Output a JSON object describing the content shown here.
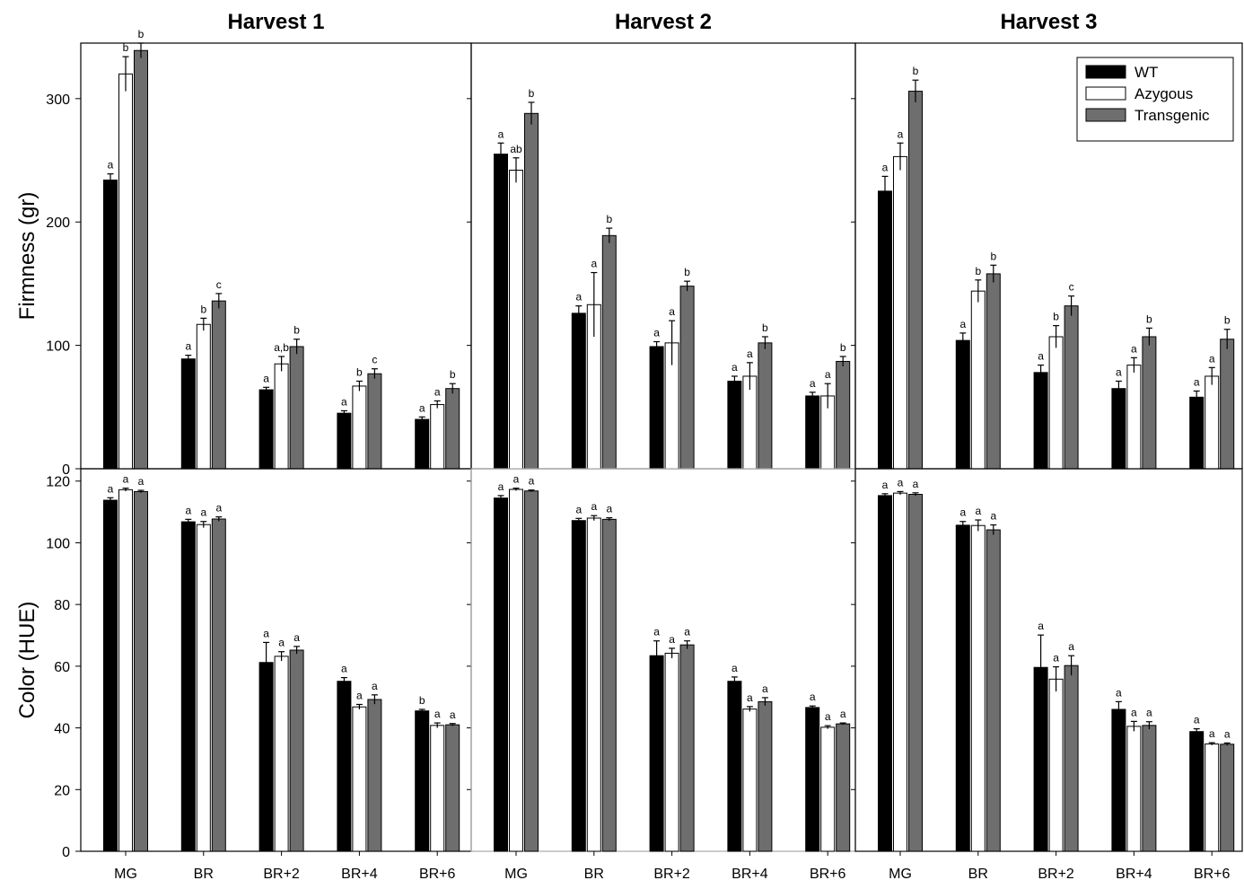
{
  "chart_data": {
    "type": "bar",
    "categories": [
      "MG",
      "BR",
      "BR+2",
      "BR+4",
      "BR+6"
    ],
    "harvest_titles": [
      "Harvest 1",
      "Harvest 2",
      "Harvest 3"
    ],
    "legend": {
      "placement": "top-right",
      "entries": [
        {
          "name": "WT",
          "color": "#000000"
        },
        {
          "name": "Azygous",
          "color": "#ffffff"
        },
        {
          "name": "Transgenic",
          "color": "#6e6e6e"
        }
      ]
    },
    "panels": [
      {
        "ylabel": "Firmness (gr)",
        "ylim": [
          0,
          345
        ],
        "yticks": [
          0,
          100,
          200,
          300
        ],
        "harvests": [
          {
            "title": "Harvest 1",
            "series": [
              {
                "name": "WT",
                "values": [
                  234,
                  89,
                  64,
                  45,
                  40
                ],
                "errors": [
                  5,
                  3,
                  2,
                  2,
                  2
                ],
                "letters": [
                  "a",
                  "a",
                  "a",
                  "a",
                  "a"
                ]
              },
              {
                "name": "Azygous",
                "values": [
                  320,
                  117,
                  85,
                  67,
                  52
                ],
                "errors": [
                  14,
                  5,
                  6,
                  4,
                  3
                ],
                "letters": [
                  "b",
                  "b",
                  "a,b",
                  "b",
                  "a"
                ]
              },
              {
                "name": "Transgenic",
                "values": [
                  339,
                  136,
                  99,
                  77,
                  65
                ],
                "errors": [
                  6,
                  6,
                  6,
                  4,
                  4
                ],
                "letters": [
                  "b",
                  "c",
                  "b",
                  "c",
                  "b"
                ]
              }
            ]
          },
          {
            "title": "Harvest 2",
            "series": [
              {
                "name": "WT",
                "values": [
                  255,
                  126,
                  99,
                  71,
                  59
                ],
                "errors": [
                  9,
                  6,
                  4,
                  4,
                  3
                ],
                "letters": [
                  "a",
                  "a",
                  "a",
                  "a",
                  "a"
                ]
              },
              {
                "name": "Azygous",
                "values": [
                  242,
                  133,
                  102,
                  75,
                  59
                ],
                "errors": [
                  10,
                  26,
                  18,
                  11,
                  10
                ],
                "letters": [
                  "ab",
                  "a",
                  "a",
                  "a",
                  "a"
                ]
              },
              {
                "name": "Transgenic",
                "values": [
                  288,
                  189,
                  148,
                  102,
                  87
                ],
                "errors": [
                  9,
                  6,
                  4,
                  5,
                  4
                ],
                "letters": [
                  "b",
                  "b",
                  "b",
                  "b",
                  "b"
                ]
              }
            ]
          },
          {
            "title": "Harvest 3",
            "series": [
              {
                "name": "WT",
                "values": [
                  225,
                  104,
                  78,
                  65,
                  58
                ],
                "errors": [
                  12,
                  6,
                  6,
                  6,
                  5
                ],
                "letters": [
                  "a",
                  "a",
                  "a",
                  "a",
                  "a"
                ]
              },
              {
                "name": "Azygous",
                "values": [
                  253,
                  144,
                  107,
                  84,
                  75
                ],
                "errors": [
                  11,
                  9,
                  9,
                  6,
                  7
                ],
                "letters": [
                  "a",
                  "b",
                  "b",
                  "a",
                  "a"
                ]
              },
              {
                "name": "Transgenic",
                "values": [
                  306,
                  158,
                  132,
                  107,
                  105
                ],
                "errors": [
                  9,
                  7,
                  8,
                  7,
                  8
                ],
                "letters": [
                  "b",
                  "b",
                  "c",
                  "b",
                  "b"
                ]
              }
            ]
          }
        ]
      },
      {
        "ylabel": "Color (HUE)",
        "ylim": [
          0,
          124
        ],
        "yticks": [
          0,
          20,
          40,
          60,
          80,
          100,
          120
        ],
        "harvests": [
          {
            "title": "Harvest 1",
            "series": [
              {
                "name": "WT",
                "values": [
                  113.8,
                  106.8,
                  61.2,
                  55.1,
                  45.5
                ],
                "errors": [
                  0.8,
                  0.8,
                  6.5,
                  1.2,
                  0.5
                ],
                "letters": [
                  "a",
                  "a",
                  "a",
                  "a",
                  "b"
                ]
              },
              {
                "name": "Azygous",
                "values": [
                  117.2,
                  105.9,
                  63.2,
                  46.8,
                  40.8
                ],
                "errors": [
                  0.5,
                  1.0,
                  1.5,
                  0.8,
                  0.8
                ],
                "letters": [
                  "a",
                  "a",
                  "a",
                  "a",
                  "a"
                ]
              },
              {
                "name": "Transgenic",
                "values": [
                  116.6,
                  107.7,
                  65.2,
                  49.2,
                  41.0
                ],
                "errors": [
                  0.4,
                  0.7,
                  1.2,
                  1.5,
                  0.4
                ],
                "letters": [
                  "a",
                  "a",
                  "a",
                  "a",
                  "a"
                ]
              }
            ]
          },
          {
            "title": "Harvest 2",
            "series": [
              {
                "name": "WT",
                "values": [
                  114.5,
                  107.2,
                  63.4,
                  55.1,
                  46.6
                ],
                "errors": [
                  0.8,
                  0.7,
                  4.8,
                  1.4,
                  0.5
                ],
                "letters": [
                  "a",
                  "a",
                  "a",
                  "a",
                  "a"
                ]
              },
              {
                "name": "Azygous",
                "values": [
                  117.3,
                  108.0,
                  64.2,
                  46.1,
                  40.2
                ],
                "errors": [
                  0.4,
                  0.8,
                  1.6,
                  0.8,
                  0.5
                ],
                "letters": [
                  "a",
                  "a",
                  "a",
                  "a",
                  "a"
                ]
              },
              {
                "name": "Transgenic",
                "values": [
                  116.8,
                  107.6,
                  66.9,
                  48.5,
                  41.3
                ],
                "errors": [
                  0.3,
                  0.5,
                  1.3,
                  1.3,
                  0.3
                ],
                "letters": [
                  "a",
                  "a",
                  "a",
                  "a",
                  "a"
                ]
              }
            ]
          },
          {
            "title": "Harvest 3",
            "series": [
              {
                "name": "WT",
                "values": [
                  115.3,
                  105.7,
                  59.6,
                  46.0,
                  38.8
                ],
                "errors": [
                  0.6,
                  1.2,
                  10.5,
                  2.5,
                  0.9
                ],
                "letters": [
                  "a",
                  "a",
                  "a",
                  "a",
                  "a"
                ]
              },
              {
                "name": "Azygous",
                "values": [
                  116.1,
                  105.6,
                  55.8,
                  40.5,
                  34.8
                ],
                "errors": [
                  0.5,
                  1.8,
                  4.0,
                  1.6,
                  0.4
                ],
                "letters": [
                  "a",
                  "a",
                  "a",
                  "a",
                  "a"
                ]
              },
              {
                "name": "Transgenic",
                "values": [
                  115.7,
                  104.2,
                  60.2,
                  40.8,
                  34.7
                ],
                "errors": [
                  0.5,
                  1.6,
                  3.2,
                  1.2,
                  0.4
                ],
                "letters": [
                  "a",
                  "a",
                  "a",
                  "a",
                  "a"
                ]
              }
            ]
          }
        ]
      }
    ]
  }
}
